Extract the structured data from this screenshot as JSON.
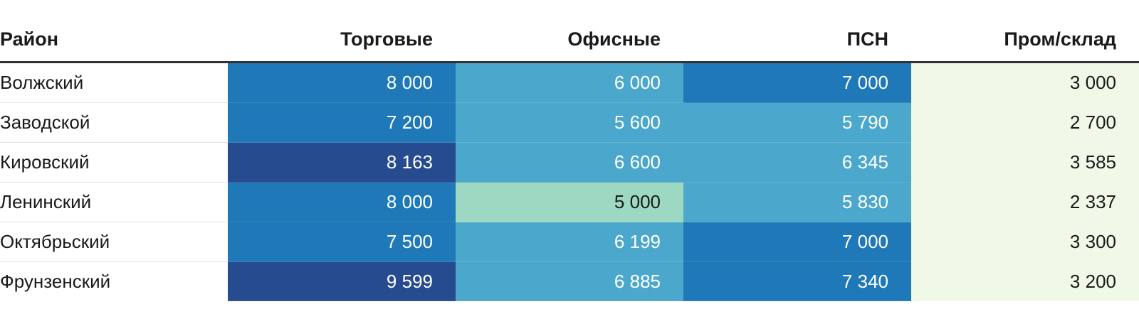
{
  "chart_data": {
    "type": "table",
    "columns": [
      "Район",
      "Торговые",
      "Офисные",
      "ПСН",
      "Пром/склад"
    ],
    "rows": [
      {
        "district": "Волжский",
        "values": [
          "8 000",
          "6 000",
          "7 000",
          "3 000"
        ],
        "numeric": [
          8000,
          6000,
          7000,
          3000
        ]
      },
      {
        "district": "Заводской",
        "values": [
          "7 200",
          "5 600",
          "5 790",
          "2 700"
        ],
        "numeric": [
          7200,
          5600,
          5790,
          2700
        ]
      },
      {
        "district": "Кировский",
        "values": [
          "8 163",
          "6 600",
          "6 345",
          "3 585"
        ],
        "numeric": [
          8163,
          6600,
          6345,
          3585
        ]
      },
      {
        "district": "Ленинский",
        "values": [
          "8 000",
          "5 000",
          "5 830",
          "2 337"
        ],
        "numeric": [
          8000,
          5000,
          5830,
          2337
        ]
      },
      {
        "district": "Октябрьский",
        "values": [
          "7 500",
          "6 199",
          "7 000",
          "3 300"
        ],
        "numeric": [
          7500,
          6199,
          7000,
          3300
        ]
      },
      {
        "district": "Фрунзенский",
        "values": [
          "9 599",
          "6 885",
          "7 340",
          "3 200"
        ],
        "numeric": [
          9599,
          6885,
          7340,
          3200
        ]
      }
    ],
    "color_scale": {
      "palette": [
        "#f0f9e8",
        "#9dd9c2",
        "#4ba8cc",
        "#1f78b8",
        "#264b8e"
      ],
      "thresholds": [
        4000,
        5500,
        7000,
        8100
      ]
    }
  }
}
